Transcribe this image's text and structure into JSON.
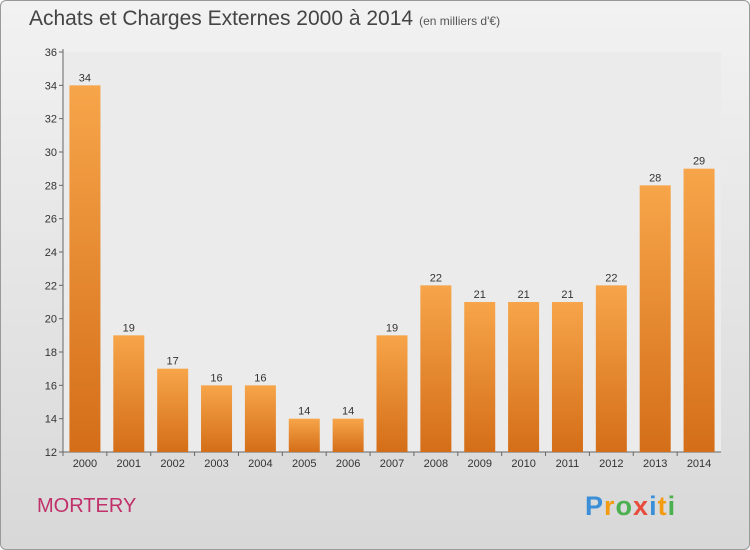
{
  "header": {
    "title": "Achats et Charges Externes 2000 à 2014",
    "subtitle": "(en milliers d'€)"
  },
  "commune": "MORTERY",
  "logo": {
    "text": "Proxiti",
    "letters": [
      "P",
      "r",
      "o",
      "x",
      "i",
      "t",
      "i"
    ],
    "colors": [
      "#3a8fd8",
      "#f39c12",
      "#4caf50",
      "#e74c3c",
      "#3a8fd8",
      "#f39c12",
      "#4caf50"
    ]
  },
  "chart_data": {
    "type": "bar",
    "categories": [
      "2000",
      "2001",
      "2002",
      "2003",
      "2004",
      "2005",
      "2006",
      "2007",
      "2008",
      "2009",
      "2010",
      "2011",
      "2012",
      "2013",
      "2014"
    ],
    "values": [
      34,
      19,
      17,
      16,
      16,
      14,
      14,
      19,
      22,
      21,
      21,
      21,
      22,
      28,
      29
    ],
    "data_labels": [
      "34",
      "19",
      "17",
      "16",
      "16",
      "14",
      "14",
      "19",
      "22",
      "21",
      "21",
      "21",
      "22",
      "28",
      "29"
    ],
    "yticks": [
      "12",
      "14",
      "16",
      "18",
      "20",
      "22",
      "24",
      "26",
      "28",
      "30",
      "32",
      "34",
      "36"
    ],
    "ylim": [
      12,
      36
    ],
    "grid": false,
    "bar_color_top": "#f7a54a",
    "bar_color_bottom": "#d46e18"
  }
}
